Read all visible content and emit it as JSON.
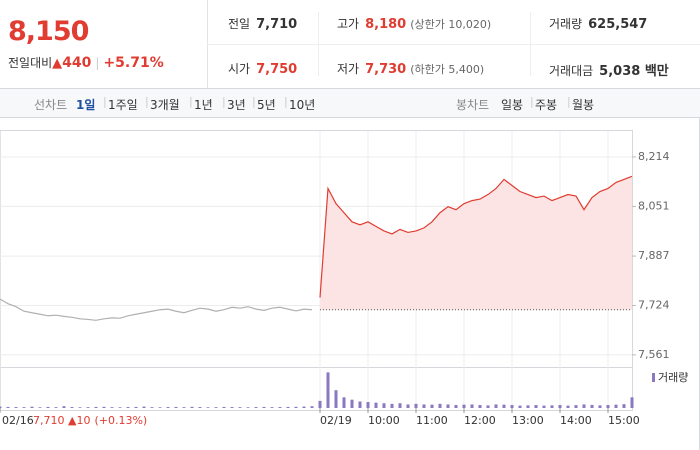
{
  "header": {
    "price": "8,150",
    "change_label": "전일대비",
    "change": "440",
    "change_pct": "+5.71%",
    "stats": [
      {
        "label": "전일",
        "value": "7,710",
        "color": "#333333"
      },
      {
        "label": "고가",
        "value": "8,180",
        "note": "(상한가 10,020)",
        "color": "#e03c31"
      },
      {
        "label": "거래량",
        "value": "625,547",
        "color": "#333333"
      },
      {
        "label": "시가",
        "value": "7,750",
        "color": "#e03c31"
      },
      {
        "label": "저가",
        "value": "7,730",
        "note": "(하한가 5,400)",
        "color": "#e03c31"
      },
      {
        "label": "거래대금",
        "value": "5,038 백만",
        "color": "#333333"
      }
    ]
  },
  "tabs": {
    "line_label": "선차트",
    "line": [
      "1일",
      "1주일",
      "3개월",
      "1년",
      "3년",
      "5년",
      "10년"
    ],
    "selected": 0,
    "candle_label": "봉차트",
    "candle": [
      "일봉",
      "주봉",
      "월봉"
    ]
  },
  "footer": {
    "price": "7,710",
    "change": "10",
    "change_pct": "(+0.13%)"
  },
  "chart_data": {
    "type": "line",
    "categories": [
      "02/16",
      null,
      null,
      null,
      null,
      null,
      null,
      null,
      null,
      null,
      null,
      null,
      null,
      null,
      null,
      null,
      null,
      null,
      null,
      null,
      null,
      null,
      null,
      null,
      null,
      null,
      null,
      null,
      null,
      null,
      null,
      null,
      null,
      null,
      null,
      null,
      null,
      null,
      null,
      null,
      "02/19",
      null,
      null,
      null,
      null,
      null,
      "10:00",
      null,
      null,
      null,
      null,
      null,
      "11:00",
      null,
      null,
      null,
      null,
      null,
      "12:00",
      null,
      null,
      null,
      null,
      null,
      "13:00",
      null,
      null,
      null,
      null,
      null,
      "14:00",
      null,
      null,
      null,
      null,
      null,
      "15:00",
      null,
      null,
      null
    ],
    "series": [
      {
        "color": "#b0b0b0",
        "values": [
          7745,
          7730,
          7720,
          7705,
          7700,
          7695,
          7690,
          7692,
          7688,
          7685,
          7680,
          7678,
          7675,
          7680,
          7683,
          7682,
          7690,
          7695,
          7700,
          7705,
          7710,
          7712,
          7705,
          7700,
          7708,
          7715,
          7712,
          7705,
          7710,
          7718,
          7715,
          7720,
          7712,
          7708,
          7715,
          7718,
          7712,
          7706,
          7712,
          7710,
          null,
          null,
          null,
          null,
          null,
          null,
          null,
          null,
          null,
          null,
          null,
          null,
          null,
          null,
          null,
          null,
          null,
          null,
          null,
          null,
          null,
          null,
          null,
          null,
          null,
          null,
          null,
          null,
          null,
          null,
          null,
          null,
          null,
          null,
          null,
          null,
          null,
          null,
          null,
          null
        ]
      },
      {
        "color": "#e03c31",
        "fill": "#fbe4e3",
        "values": [
          null,
          null,
          null,
          null,
          null,
          null,
          null,
          null,
          null,
          null,
          null,
          null,
          null,
          null,
          null,
          null,
          null,
          null,
          null,
          null,
          null,
          null,
          null,
          null,
          null,
          null,
          null,
          null,
          null,
          null,
          null,
          null,
          null,
          null,
          null,
          null,
          null,
          null,
          null,
          null,
          7750,
          8110,
          8060,
          8030,
          8000,
          7990,
          8000,
          7985,
          7970,
          7960,
          7975,
          7965,
          7970,
          7980,
          8000,
          8030,
          8050,
          8040,
          8060,
          8070,
          8075,
          8090,
          8110,
          8140,
          8120,
          8100,
          8090,
          8080,
          8085,
          8070,
          8080,
          8090,
          8085,
          8040,
          8080,
          8100,
          8110,
          8130,
          8140,
          8150
        ]
      }
    ],
    "baseline": 7710,
    "ylim": [
      7521,
      8270
    ],
    "yticks": [
      {
        "value": 8214,
        "label": "8,214"
      },
      {
        "value": 8051,
        "label": "8,051"
      },
      {
        "value": 7887,
        "label": "7,887"
      },
      {
        "value": 7724,
        "label": "7,724"
      },
      {
        "value": 7561,
        "label": "7,561"
      }
    ],
    "grid": true,
    "volume": {
      "name": "거래량",
      "color": "#8a78c0",
      "ylim": [
        0,
        32000
      ],
      "values": [
        1200,
        900,
        800,
        700,
        1100,
        600,
        900,
        700,
        1500,
        800,
        600,
        700,
        900,
        1000,
        700,
        600,
        800,
        900,
        1200,
        700,
        600,
        800,
        900,
        700,
        1000,
        800,
        600,
        700,
        900,
        800,
        700,
        600,
        800,
        900,
        700,
        800,
        900,
        1000,
        1200,
        1500,
        6000,
        30000,
        15000,
        9000,
        7000,
        5500,
        5000,
        4500,
        4000,
        3500,
        4000,
        3000,
        3500,
        3000,
        2800,
        3500,
        3000,
        2500,
        2800,
        3000,
        2500,
        2200,
        3000,
        2800,
        2500,
        2000,
        2200,
        2500,
        2000,
        2200,
        2500,
        2000,
        2400,
        3000,
        2600,
        2200,
        2500,
        2800,
        3200,
        9000
      ]
    }
  }
}
